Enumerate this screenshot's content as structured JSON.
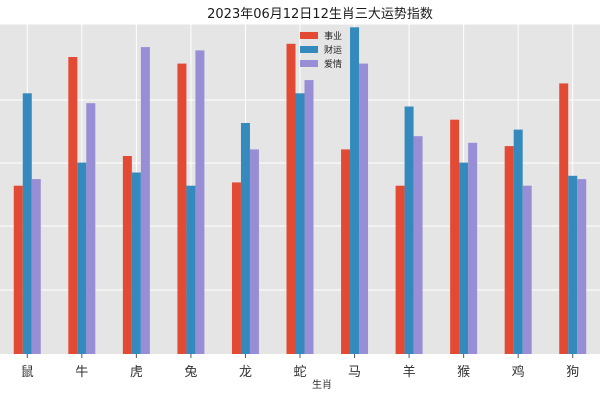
{
  "chart_data": {
    "type": "bar",
    "title": "2023年06月12日12生肖三大运势指数",
    "xlabel": "生肖",
    "ylabel": "",
    "categories": [
      "鼠",
      "牛",
      "虎",
      "兔",
      "龙",
      "蛇",
      "马",
      "羊",
      "猴",
      "鸡",
      "狗"
    ],
    "series": [
      {
        "name": "事业",
        "color": "#E24A33",
        "values": [
          51,
          90,
          60,
          88,
          52,
          94,
          62,
          51,
          71,
          63,
          82
        ]
      },
      {
        "name": "财运",
        "color": "#348ABD",
        "values": [
          79,
          58,
          55,
          51,
          70,
          79,
          99,
          75,
          58,
          68,
          54
        ]
      },
      {
        "name": "爱情",
        "color": "#988ED5",
        "values": [
          53,
          76,
          93,
          92,
          62,
          83,
          88,
          66,
          64,
          51,
          53
        ]
      }
    ],
    "ylim": [
      0,
      100
    ],
    "grid": true,
    "legend_position": "top-center"
  }
}
